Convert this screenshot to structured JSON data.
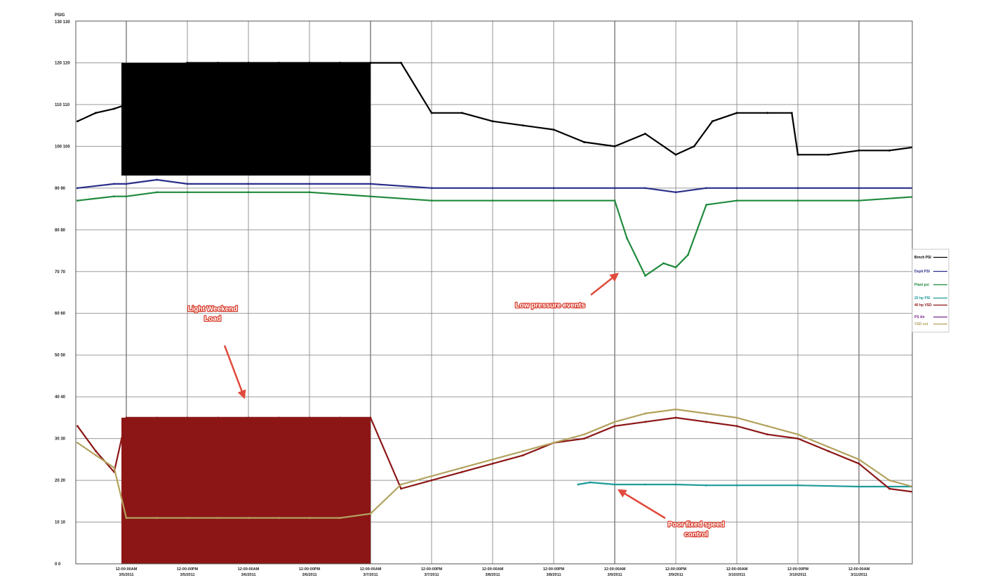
{
  "chart_data": {
    "type": "line",
    "unit_label": "PSIG",
    "y_ticks": [
      {
        "value": 120,
        "label": "120 120"
      },
      {
        "value": 110,
        "label": "110 110"
      },
      {
        "value": 100,
        "label": "100 100"
      },
      {
        "value": 90,
        "label": "90 90"
      },
      {
        "value": 80,
        "label": "80 80"
      },
      {
        "value": 70,
        "label": "70 70"
      },
      {
        "value": 60,
        "label": "60 60"
      },
      {
        "value": 50,
        "label": "50 50"
      },
      {
        "value": 40,
        "label": "40 40"
      },
      {
        "value": 30,
        "label": "30 30"
      },
      {
        "value": 20,
        "label": "20 20"
      },
      {
        "value": 10,
        "label": "10 10"
      },
      {
        "value": 0,
        "label": "0 0"
      }
    ],
    "y_top_label": "130 130",
    "ylim": [
      0,
      130
    ],
    "x_ticks": [
      {
        "time": "12:00:00AM",
        "date": "3/5/2011"
      },
      {
        "time": "12:00:00PM",
        "date": "3/5/2011"
      },
      {
        "time": "12:00:00AM",
        "date": "3/6/2011"
      },
      {
        "time": "12:00:00PM",
        "date": "3/6/2011"
      },
      {
        "time": "12:00:00AM",
        "date": "3/7/2011"
      },
      {
        "time": "12:00:00PM",
        "date": "3/7/2011"
      },
      {
        "time": "12:00:00AM",
        "date": "3/8/2011"
      },
      {
        "time": "12:00:00PM",
        "date": "3/8/2011"
      },
      {
        "time": "12:00:00AM",
        "date": "3/9/2011"
      },
      {
        "time": "12:00:00PM",
        "date": "3/9/2011"
      },
      {
        "time": "12:00:00AM",
        "date": "3/10/2011"
      },
      {
        "time": "12:00:00PM",
        "date": "3/10/2011"
      },
      {
        "time": "12:00:00AM",
        "date": "3/11/2011"
      }
    ],
    "grid": true,
    "legend_position": "right",
    "series": [
      {
        "name": "Brnch PSI",
        "color": "#000000",
        "x": [
          -0.8,
          -0.5,
          -0.2,
          0.0,
          0.5,
          1.0,
          1.5,
          2.0,
          2.5,
          3.0,
          3.5,
          4.0,
          4.5,
          5.0,
          5.5,
          6.0,
          6.5,
          7.0,
          7.5,
          8.0,
          8.5,
          9.0,
          9.3,
          9.6,
          10.0,
          10.5,
          10.9,
          11.0,
          11.5,
          12.0,
          12.5,
          13.0
        ],
        "values": [
          106,
          108,
          109,
          110,
          118,
          120,
          120,
          120,
          120,
          120,
          120,
          120,
          120,
          108,
          108,
          106,
          105,
          104,
          101,
          100,
          103,
          98,
          100,
          106,
          108,
          108,
          108,
          98,
          98,
          99,
          99,
          100
        ]
      },
      {
        "name": "Dspit PSI",
        "color": "#2b2f8a",
        "x": [
          -0.8,
          -0.2,
          0.0,
          0.5,
          1.0,
          2.0,
          3.0,
          4.0,
          5.0,
          6.0,
          7.0,
          8.0,
          8.5,
          9.0,
          9.5,
          10.0,
          11.0,
          12.0,
          13.0
        ],
        "values": [
          90,
          91,
          91,
          92,
          91,
          91,
          91,
          91,
          90,
          90,
          90,
          90,
          90,
          89,
          90,
          90,
          90,
          90,
          90
        ]
      },
      {
        "name": "Plant psi",
        "color": "#1f8a3c",
        "x": [
          -0.8,
          -0.2,
          0.0,
          0.5,
          1.0,
          2.0,
          3.0,
          4.0,
          5.0,
          6.0,
          7.0,
          8.0,
          8.2,
          8.5,
          8.8,
          9.0,
          9.2,
          9.5,
          10.0,
          11.0,
          12.0,
          13.0
        ],
        "values": [
          87,
          88,
          88,
          89,
          89,
          89,
          89,
          88,
          87,
          87,
          87,
          87,
          78,
          69,
          72,
          71,
          74,
          86,
          87,
          87,
          87,
          88
        ]
      },
      {
        "name": "20 hp PSI",
        "color": "#1f9a9a",
        "x": [
          7.4,
          7.6,
          8.0,
          8.5,
          9.0,
          9.5,
          10.0,
          11.0,
          12.0,
          13.0
        ],
        "values": [
          19,
          19.5,
          19,
          19,
          19,
          18.8,
          18.8,
          18.8,
          18.5,
          18.5
        ]
      },
      {
        "name": "40 hp VSD",
        "color": "#8c1616",
        "x": [
          -0.8,
          -0.5,
          -0.2,
          0.0,
          0.5,
          1.0,
          1.5,
          2.0,
          2.5,
          3.0,
          3.5,
          4.0,
          4.5,
          5.0,
          5.5,
          6.0,
          6.5,
          7.0,
          7.5,
          8.0,
          8.5,
          9.0,
          9.5,
          10.0,
          10.5,
          11.0,
          11.5,
          12.0,
          12.5,
          13.0
        ],
        "values": [
          33,
          27,
          22,
          35,
          35,
          35,
          35,
          35,
          35,
          35,
          35,
          35,
          18,
          20,
          22,
          24,
          26,
          29,
          30,
          33,
          34,
          35,
          34,
          33,
          31,
          30,
          27,
          24,
          18,
          17
        ]
      },
      {
        "name": "PS Air",
        "color": "#7a2a8a",
        "x": [],
        "values": []
      },
      {
        "name": "VSD out",
        "color": "#b2a25e",
        "x": [
          -0.8,
          -0.5,
          -0.2,
          0.0,
          0.5,
          1.0,
          1.5,
          2.0,
          2.5,
          3.0,
          3.5,
          4.0,
          4.5,
          5.0,
          5.5,
          6.0,
          6.5,
          7.0,
          7.5,
          8.0,
          8.5,
          9.0,
          9.5,
          10.0,
          10.5,
          11.0,
          11.5,
          12.0,
          12.5,
          13.0
        ],
        "values": [
          29,
          26,
          23,
          11,
          11,
          11,
          11,
          11,
          11,
          11,
          11,
          12,
          19,
          21,
          23,
          25,
          27,
          29,
          31,
          34,
          36,
          37,
          36,
          35,
          33,
          31,
          28,
          25,
          20,
          18
        ]
      }
    ],
    "annotations": [
      {
        "text_lines": [
          "Light Weekend",
          "Load"
        ]
      },
      {
        "text_lines": [
          "Low pressure events"
        ]
      },
      {
        "text_lines": [
          "Poor fixed speed",
          "control"
        ]
      }
    ]
  }
}
